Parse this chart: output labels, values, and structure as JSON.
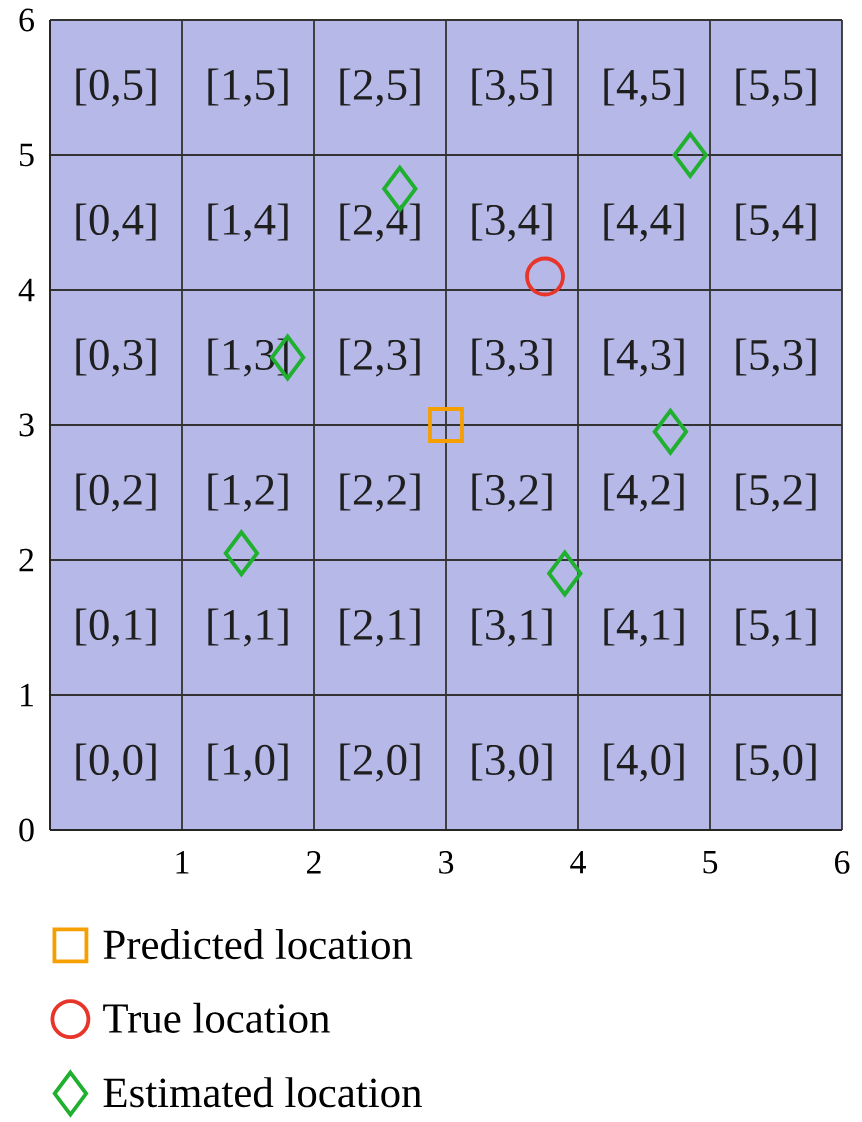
{
  "chart_data": {
    "type": "scatter",
    "xlim": [
      0,
      6
    ],
    "ylim": [
      0,
      6
    ],
    "xticks": [
      1,
      2,
      3,
      4,
      5,
      6
    ],
    "yticks": [
      0,
      1,
      2,
      3,
      4,
      5,
      6
    ],
    "grid": true,
    "legend": "bottom",
    "series": [
      {
        "name": "Predicted location",
        "color": "#f5a000",
        "marker": "square",
        "x": [
          3
        ],
        "values": [
          3
        ]
      },
      {
        "name": "True location",
        "color": "#e8352a",
        "marker": "circle",
        "x": [
          3.75
        ],
        "values": [
          4.1
        ]
      },
      {
        "name": "Estimated location",
        "color": "#20b030",
        "marker": "diamond",
        "x": [
          2.65,
          4.85,
          1.8,
          4.7,
          1.45,
          3.9
        ],
        "values": [
          4.75,
          5.0,
          3.5,
          2.95,
          2.05,
          1.9
        ]
      }
    ],
    "annotations": [
      "[0,5]",
      "[1,5]",
      "[2,5]",
      "[3,5]",
      "[4,5]",
      "[5,5]",
      "[0,4]",
      "[1,4]",
      "[2,4]",
      "[3,4]",
      "[4,4]",
      "[5,4]",
      "[0,3]",
      "[1,3]",
      "[2,3]",
      "[3,3]",
      "[4,3]",
      "[5,3]",
      "[0,2]",
      "[1,2]",
      "[2,2]",
      "[3,2]",
      "[4,2]",
      "[5,2]",
      "[0,1]",
      "[1,1]",
      "[2,1]",
      "[3,1]",
      "[4,1]",
      "[5,1]",
      "[0,0]",
      "[1,0]",
      "[2,0]",
      "[3,0]",
      "[4,0]",
      "[5,0]"
    ]
  }
}
